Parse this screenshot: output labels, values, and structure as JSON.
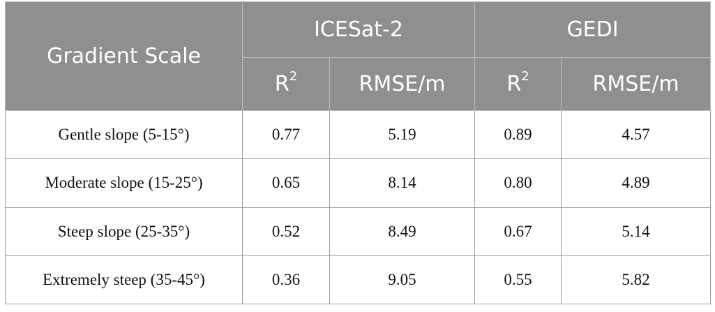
{
  "table": {
    "row_header_label": "Gradient Scale",
    "groups": [
      "ICESat-2",
      "GEDI"
    ],
    "metric_r_base": "R",
    "metric_r_sup": "2",
    "metric_rmse": "RMSE/m",
    "rows": [
      {
        "label": "Gentle slope (5-15°)",
        "icesat_r2": "0.77",
        "icesat_rmse": "5.19",
        "gedi_r2": "0.89",
        "gedi_rmse": "4.57"
      },
      {
        "label": "Moderate slope (15-25°)",
        "icesat_r2": "0.65",
        "icesat_rmse": "8.14",
        "gedi_r2": "0.80",
        "gedi_rmse": "4.89"
      },
      {
        "label": "Steep slope (25-35°)",
        "icesat_r2": "0.52",
        "icesat_rmse": "8.49",
        "gedi_r2": "0.67",
        "gedi_rmse": "5.14"
      },
      {
        "label": "Extremely steep (35-45°)",
        "icesat_r2": "0.36",
        "icesat_rmse": "9.05",
        "gedi_r2": "0.55",
        "gedi_rmse": "5.82"
      }
    ]
  }
}
